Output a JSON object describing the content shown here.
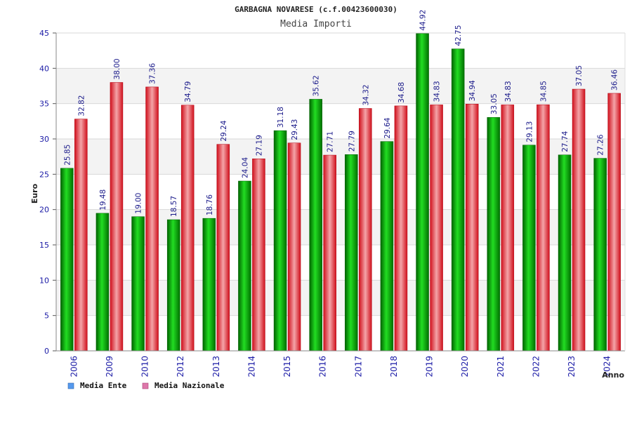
{
  "chart_data": {
    "type": "bar",
    "title": "GARBAGNA NOVARESE (c.f.00423600030)",
    "subtitle": "Media Importi",
    "xlabel": "Anno",
    "ylabel": "Euro",
    "ylim": [
      0,
      45
    ],
    "yticks": [
      "0",
      "5",
      "10",
      "15",
      "20",
      "25",
      "30",
      "35",
      "40",
      "45"
    ],
    "grid": true,
    "legend_position": "bottom-left",
    "categories": [
      "2006",
      "2009",
      "2010",
      "2012",
      "2013",
      "2014",
      "2015",
      "2016",
      "2017",
      "2018",
      "2019",
      "2020",
      "2021",
      "2022",
      "2023",
      "2024"
    ],
    "series": [
      {
        "name": "Media Ente",
        "color": "#00c000",
        "legend_color": "#5599ee",
        "values": [
          25.85,
          19.48,
          19.0,
          18.57,
          18.76,
          24.04,
          31.18,
          35.62,
          27.79,
          29.64,
          44.92,
          42.75,
          33.05,
          29.13,
          27.74,
          27.26
        ],
        "labels": [
          "25.85",
          "19.48",
          "19.00",
          "18.57",
          "18.76",
          "24.04",
          "31.18",
          "35.62",
          "27.79",
          "29.64",
          "44.92",
          "42.75",
          "33.05",
          "29.13",
          "27.74",
          "27.26"
        ]
      },
      {
        "name": "Media Nazionale",
        "color": "#e8202a",
        "legend_color": "#dd77aa",
        "values": [
          32.82,
          38.0,
          37.36,
          34.79,
          29.24,
          27.19,
          29.43,
          27.71,
          34.32,
          34.68,
          34.83,
          34.94,
          34.83,
          34.85,
          37.05,
          36.46
        ],
        "labels": [
          "32.82",
          "38.00",
          "37.36",
          "34.79",
          "29.24",
          "27.19",
          "29.43",
          "27.71",
          "34.32",
          "34.68",
          "34.83",
          "34.94",
          "34.83",
          "34.85",
          "37.05",
          "36.46"
        ]
      }
    ]
  }
}
